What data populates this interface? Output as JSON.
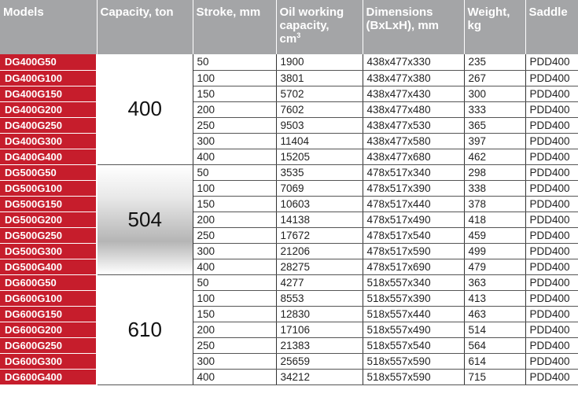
{
  "headers": {
    "models": "Models",
    "capacity": "Capacity, ton",
    "stroke": "Stroke, mm",
    "oil_main": "Oil working capacity,",
    "oil_unit": "cm",
    "oil_unit_sup": "3",
    "dimensions": "Dimensions (BxLxH), mm",
    "weight": "Weight, kg",
    "saddle": "Saddle"
  },
  "groups": [
    {
      "capacity": "400",
      "rows": [
        {
          "model": "DG400G50",
          "stroke": "50",
          "oil": "1900",
          "dims": "438x477x330",
          "weight": "235",
          "saddle": "PDD400"
        },
        {
          "model": "DG400G100",
          "stroke": "100",
          "oil": "3801",
          "dims": "438x477x380",
          "weight": "267",
          "saddle": "PDD400"
        },
        {
          "model": "DG400G150",
          "stroke": "150",
          "oil": "5702",
          "dims": "438x477x430",
          "weight": "300",
          "saddle": "PDD400"
        },
        {
          "model": "DG400G200",
          "stroke": "200",
          "oil": "7602",
          "dims": "438x477x480",
          "weight": "333",
          "saddle": "PDD400"
        },
        {
          "model": "DG400G250",
          "stroke": "250",
          "oil": "9503",
          "dims": "438x477x530",
          "weight": "365",
          "saddle": "PDD400"
        },
        {
          "model": "DG400G300",
          "stroke": "300",
          "oil": "11404",
          "dims": "438x477x580",
          "weight": "397",
          "saddle": "PDD400"
        },
        {
          "model": "DG400G400",
          "stroke": "400",
          "oil": "15205",
          "dims": "438x477x680",
          "weight": "462",
          "saddle": "PDD400"
        }
      ]
    },
    {
      "capacity": "504",
      "rows": [
        {
          "model": "DG500G50",
          "stroke": "50",
          "oil": "3535",
          "dims": "478x517x340",
          "weight": "298",
          "saddle": "PDD400"
        },
        {
          "model": "DG500G100",
          "stroke": "100",
          "oil": "7069",
          "dims": "478x517x390",
          "weight": "338",
          "saddle": "PDD400"
        },
        {
          "model": "DG500G150",
          "stroke": "150",
          "oil": "10603",
          "dims": "478x517x440",
          "weight": "378",
          "saddle": "PDD400"
        },
        {
          "model": "DG500G200",
          "stroke": "200",
          "oil": "14138",
          "dims": "478x517x490",
          "weight": "418",
          "saddle": "PDD400"
        },
        {
          "model": "DG500G250",
          "stroke": "250",
          "oil": "17672",
          "dims": "478x517x540",
          "weight": "459",
          "saddle": "PDD400"
        },
        {
          "model": "DG500G300",
          "stroke": "300",
          "oil": "21206",
          "dims": "478x517x590",
          "weight": "499",
          "saddle": "PDD400"
        },
        {
          "model": "DG500G400",
          "stroke": "400",
          "oil": "28275",
          "dims": "478x517x690",
          "weight": "479",
          "saddle": "PDD400"
        }
      ]
    },
    {
      "capacity": "610",
      "rows": [
        {
          "model": "DG600G50",
          "stroke": "50",
          "oil": "4277",
          "dims": "518x557x340",
          "weight": "363",
          "saddle": "PDD400"
        },
        {
          "model": "DG600G100",
          "stroke": "100",
          "oil": "8553",
          "dims": "518x557x390",
          "weight": "413",
          "saddle": "PDD400"
        },
        {
          "model": "DG600G150",
          "stroke": "150",
          "oil": "12830",
          "dims": "518x557x440",
          "weight": "463",
          "saddle": "PDD400"
        },
        {
          "model": "DG600G200",
          "stroke": "200",
          "oil": "17106",
          "dims": "518x557x490",
          "weight": "514",
          "saddle": "PDD400"
        },
        {
          "model": "DG600G250",
          "stroke": "250",
          "oil": "21383",
          "dims": "518x557x540",
          "weight": "564",
          "saddle": "PDD400"
        },
        {
          "model": "DG600G300",
          "stroke": "300",
          "oil": "25659",
          "dims": "518x557x590",
          "weight": "614",
          "saddle": "PDD400"
        },
        {
          "model": "DG600G400",
          "stroke": "400",
          "oil": "34212",
          "dims": "518x557x590",
          "weight": "715",
          "saddle": "PDD400"
        }
      ]
    }
  ],
  "colors": {
    "header_bg": "#a4a5a7",
    "model_bg": "#c61d2c"
  }
}
